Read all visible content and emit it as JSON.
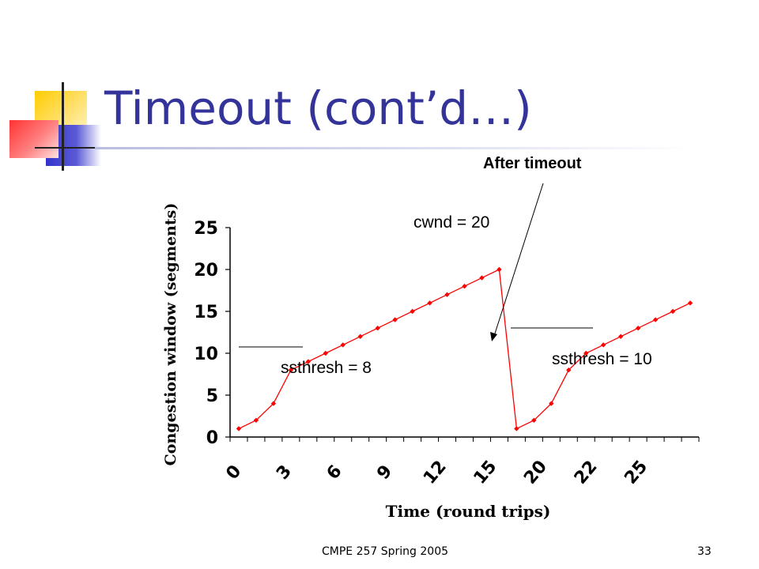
{
  "slide": {
    "title": "Timeout (cont’d…)",
    "footer_text": "CMPE 257  Spring 2005",
    "page_number": "33"
  },
  "colors": {
    "title": "#333399",
    "deco_yellow": "#ffcc00",
    "deco_blue": "#3333cc",
    "deco_red": "#ff3333",
    "series": "#ff0000"
  },
  "annotations": {
    "after_timeout": "After timeout",
    "cwnd": "cwnd = 20",
    "ssthresh_1": "ssthresh = 8",
    "ssthresh_2": "ssthresh = 10"
  },
  "chart_data": {
    "type": "line",
    "xlabel": "Time (round trips)",
    "ylabel": "Congestion window (segments)",
    "ylim": [
      0,
      25
    ],
    "yticks": [
      0,
      5,
      10,
      15,
      20,
      25
    ],
    "xticks": [
      "0",
      "3",
      "6",
      "9",
      "12",
      "15",
      "20",
      "22",
      "25"
    ],
    "grid": false,
    "series": [
      {
        "values": [
          1,
          2,
          4,
          8,
          9,
          10,
          11,
          12,
          13,
          14,
          15,
          16,
          17,
          18,
          19,
          20,
          1,
          2,
          4,
          8,
          10,
          11,
          12,
          13,
          14,
          15,
          16
        ]
      }
    ]
  }
}
